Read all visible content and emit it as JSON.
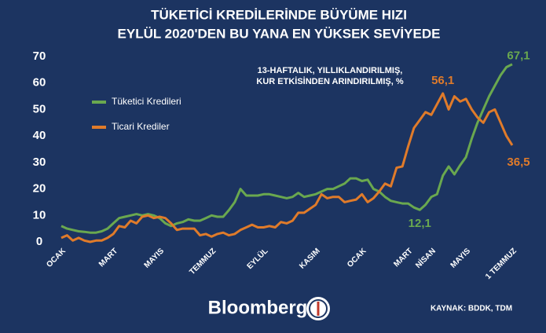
{
  "chart_data": {
    "type": "line",
    "title": [
      "TÜKETİCİ KREDİLERİNDE BÜYÜME HIZI",
      "EYLÜL 2020'DEN BU YANA EN YÜKSEK SEVİYEDE"
    ],
    "annotation": [
      "13-HAFTALIK, YILLIKLANDIRILMIŞ,",
      "KUR ETKİSİNDEN ARINDIRILMIŞ, %"
    ],
    "source": "KAYNAK: BDDK, TDM",
    "brand": "Bloomberg",
    "categories": [
      "OCAK",
      null,
      null,
      null,
      null,
      null,
      null,
      null,
      null,
      "MART",
      null,
      null,
      null,
      null,
      null,
      null,
      null,
      "MAYIS",
      null,
      null,
      null,
      null,
      null,
      null,
      null,
      null,
      "TEMMUZ",
      null,
      null,
      null,
      null,
      null,
      null,
      null,
      null,
      "EYLÜL",
      null,
      null,
      null,
      null,
      null,
      null,
      null,
      null,
      "KASIM",
      null,
      null,
      null,
      null,
      null,
      null,
      null,
      "OCAK",
      null,
      null,
      null,
      null,
      null,
      null,
      null,
      "MART",
      null,
      null,
      null,
      "NİSAN",
      null,
      null,
      null,
      null,
      null,
      "MAYIS",
      null,
      null,
      null,
      null,
      null,
      null,
      null,
      "1 TEMMUZ"
    ],
    "series": [
      {
        "name": "Tüketici Kredileri",
        "color": "#6aa84f",
        "values": [
          6,
          5,
          4.5,
          4,
          3.8,
          3.5,
          3.5,
          4,
          5,
          7,
          9,
          9.5,
          10,
          10.5,
          10,
          10.5,
          10,
          9,
          7,
          6,
          7,
          7.5,
          8.5,
          8,
          8,
          9,
          10,
          9.5,
          9.5,
          12,
          15,
          20,
          17.5,
          17.5,
          17.5,
          18,
          18,
          17.5,
          17,
          16.5,
          17,
          18.5,
          17,
          17.5,
          18,
          19,
          20,
          20,
          21,
          22,
          24,
          24,
          23,
          23.5,
          20,
          19,
          17,
          15.5,
          15,
          14.5,
          14.5,
          13,
          12.1,
          14,
          17,
          18,
          25,
          28.5,
          25.5,
          29,
          32,
          39,
          45,
          50,
          55,
          59,
          63,
          66,
          67.1
        ],
        "value_labels": [
          null,
          null,
          null,
          null,
          null,
          null,
          null,
          null,
          null,
          null,
          null,
          null,
          null,
          null,
          null,
          null,
          null,
          null,
          null,
          null,
          null,
          null,
          null,
          null,
          null,
          null,
          null,
          null,
          null,
          null,
          null,
          null,
          null,
          null,
          null,
          null,
          null,
          null,
          null,
          null,
          null,
          null,
          null,
          null,
          null,
          null,
          null,
          null,
          null,
          null,
          null,
          null,
          null,
          null,
          null,
          null,
          null,
          null,
          null,
          null,
          null,
          null,
          "12,1",
          null,
          null,
          null,
          null,
          null,
          null,
          null,
          null,
          null,
          null,
          null,
          null,
          null,
          null,
          null,
          "67,1"
        ]
      },
      {
        "name": "Ticari Krediler",
        "color": "#e07b2a",
        "values": [
          1.5,
          2.5,
          0.5,
          1.5,
          0.5,
          0,
          0.5,
          0.5,
          1.5,
          3,
          6,
          5.5,
          8,
          7,
          9.5,
          10,
          9,
          9.5,
          9,
          7,
          4.5,
          5,
          5,
          5,
          2.5,
          3,
          2,
          3,
          3.5,
          2.5,
          3,
          4.5,
          5.5,
          6.5,
          5.5,
          5.5,
          6,
          5.5,
          7.5,
          7,
          8,
          11,
          11,
          12.5,
          14,
          18,
          16.5,
          17,
          17,
          15,
          15.5,
          16,
          18,
          15,
          16.5,
          19,
          22,
          21,
          28,
          28.5,
          36,
          43,
          46,
          49,
          48,
          52,
          56.1,
          50,
          55,
          53,
          54,
          50,
          47,
          45,
          49,
          50,
          45,
          40,
          36.5
        ],
        "value_labels": [
          null,
          null,
          null,
          null,
          null,
          null,
          null,
          null,
          null,
          null,
          null,
          null,
          null,
          null,
          null,
          null,
          null,
          null,
          null,
          null,
          null,
          null,
          null,
          null,
          null,
          null,
          null,
          null,
          null,
          null,
          null,
          null,
          null,
          null,
          null,
          null,
          null,
          null,
          null,
          null,
          null,
          null,
          null,
          null,
          null,
          null,
          null,
          null,
          null,
          null,
          null,
          null,
          null,
          null,
          null,
          null,
          null,
          null,
          null,
          null,
          null,
          null,
          null,
          null,
          null,
          null,
          "56,1",
          null,
          null,
          null,
          null,
          null,
          null,
          null,
          null,
          null,
          null,
          null,
          "36,5"
        ]
      }
    ],
    "ylim": [
      0,
      70
    ],
    "yticks": [
      0,
      10,
      20,
      30,
      40,
      50,
      60,
      70
    ],
    "grid": false
  }
}
